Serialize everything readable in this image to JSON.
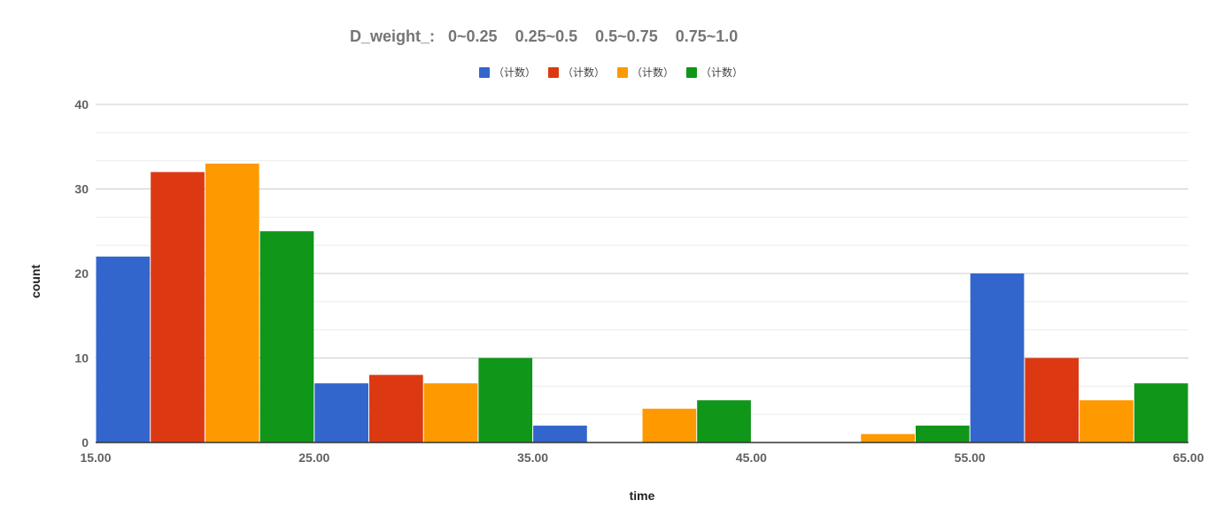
{
  "chart_data": {
    "type": "bar",
    "title": "D_weight_:   0~0.25    0.25~0.5    0.5~0.75    0.75~1.0",
    "xlabel": "time",
    "ylabel": "count",
    "ylim": [
      0,
      40
    ],
    "y_ticks": [
      "0",
      "10",
      "20",
      "30",
      "40"
    ],
    "x_ticks": [
      "15.00",
      "25.00",
      "35.00",
      "45.00",
      "55.00",
      "65.00"
    ],
    "xlim": [
      15,
      65
    ],
    "bin_starts": [
      15,
      25,
      35,
      45,
      55
    ],
    "bin_width": 10,
    "grid": true,
    "legend_position": "top",
    "series": [
      {
        "name": "（计数）",
        "color": "#3366cc",
        "values": [
          22,
          7,
          2,
          0,
          20
        ]
      },
      {
        "name": "（计数）",
        "color": "#dc3912",
        "values": [
          32,
          8,
          0,
          0,
          10
        ]
      },
      {
        "name": "（计数）",
        "color": "#ff9900",
        "values": [
          33,
          7,
          4,
          1,
          5
        ]
      },
      {
        "name": "（计数）",
        "color": "#109618",
        "values": [
          25,
          10,
          5,
          2,
          7
        ]
      }
    ]
  }
}
